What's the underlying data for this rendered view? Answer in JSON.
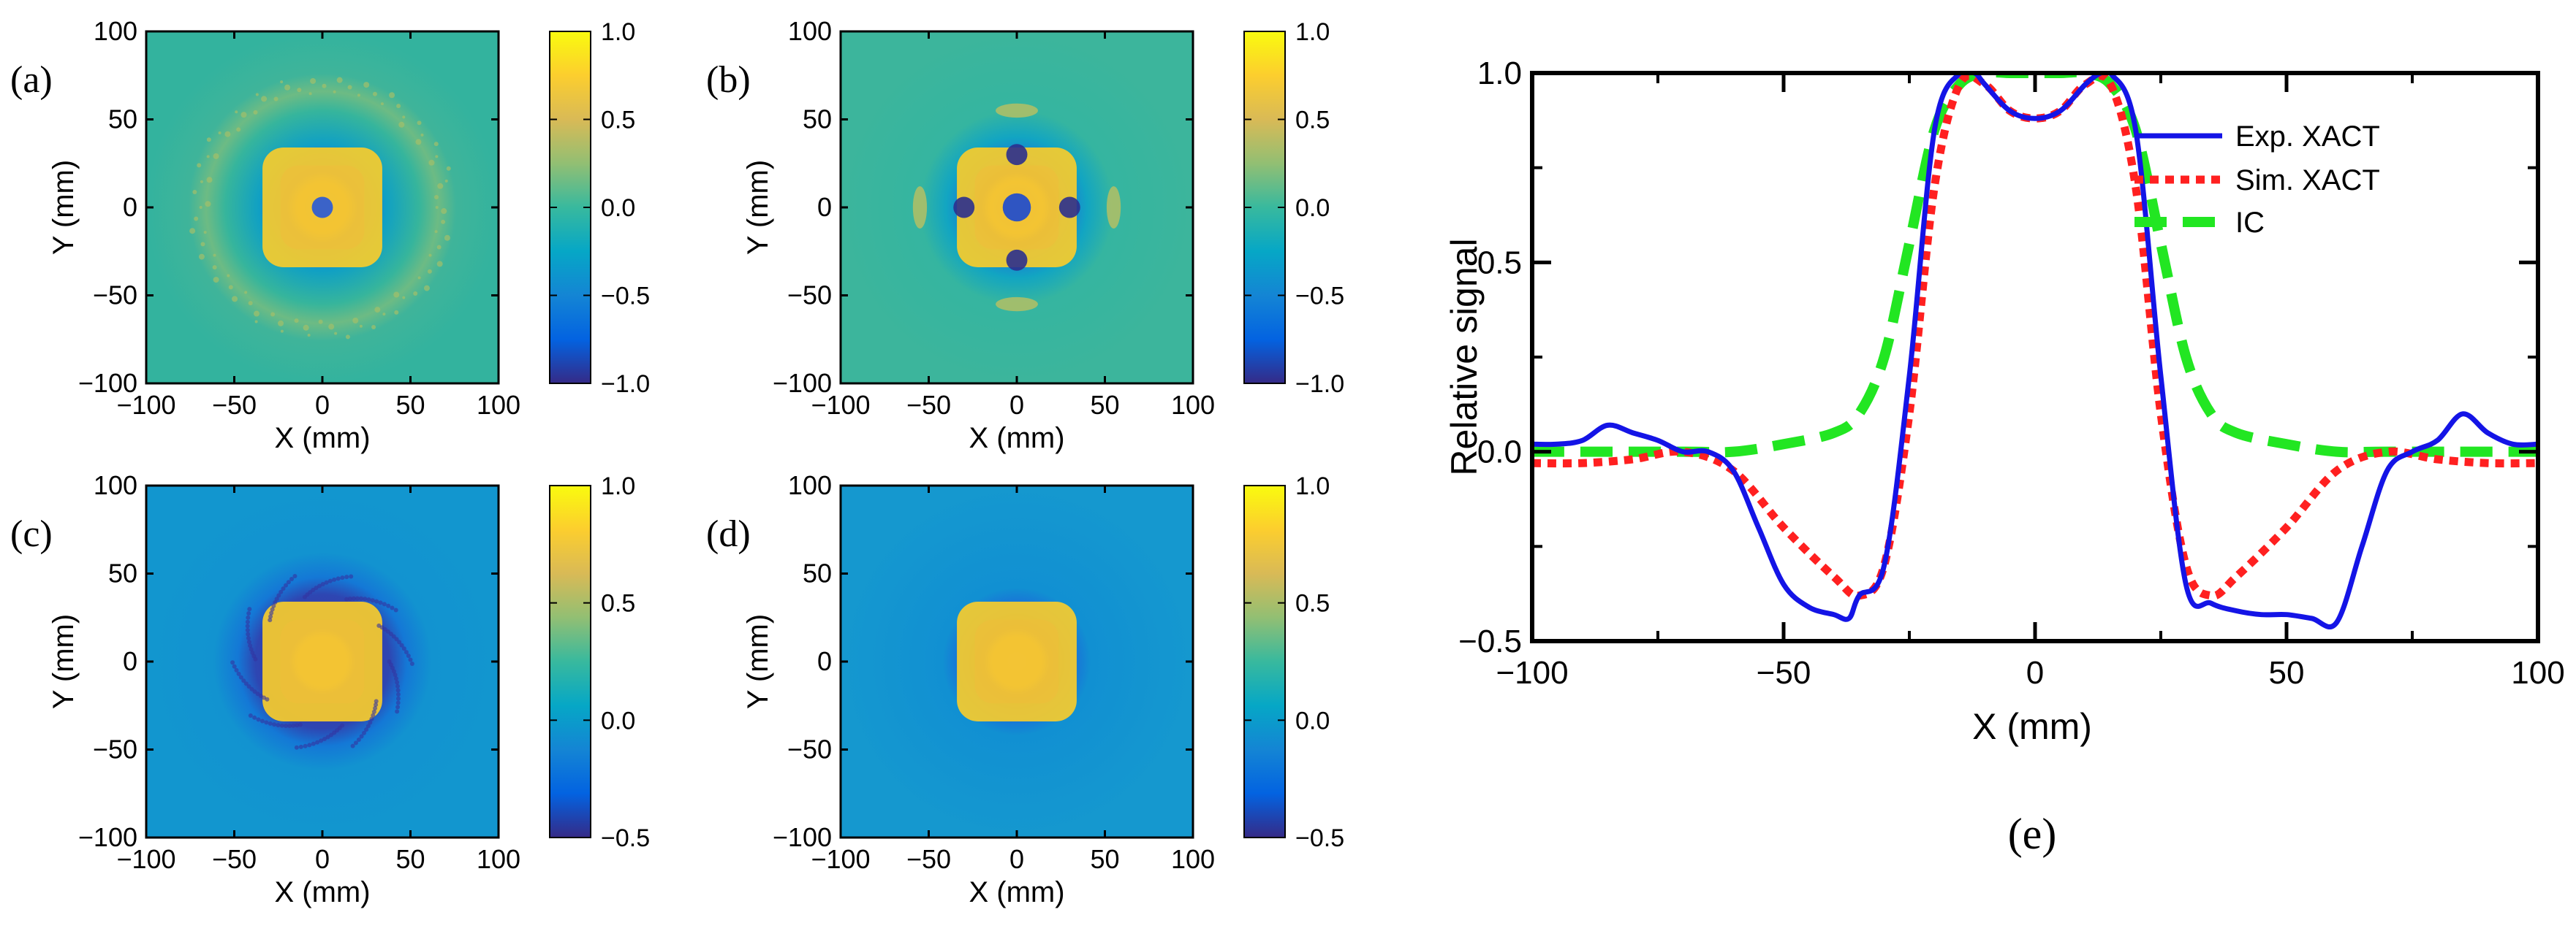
{
  "colors": {
    "parula": [
      "#352a87",
      "#0363e1",
      "#1485d4",
      "#06a7c6",
      "#38b99e",
      "#92bf73",
      "#d9ba56",
      "#fcce2e",
      "#f9fb0e"
    ],
    "exp_line": "#1414e6",
    "sim_line": "#ff2020",
    "ic_line": "#22e622"
  },
  "panels": [
    {
      "letter": "(a)",
      "xlabel": "X (mm)",
      "ylabel": "Y (mm)",
      "xticks": [
        "−100",
        "−50",
        "0",
        "50",
        "100"
      ],
      "yticks": [
        "100",
        "50",
        "0",
        "−50",
        "−100"
      ],
      "colorbar_ticks": [
        "1.0",
        "0.5",
        "0.0",
        "−0.5",
        "−1.0"
      ]
    },
    {
      "letter": "(b)",
      "xlabel": "X (mm)",
      "ylabel": "Y (mm)",
      "xticks": [
        "−100",
        "−50",
        "0",
        "50",
        "100"
      ],
      "yticks": [
        "100",
        "50",
        "0",
        "−50",
        "−100"
      ],
      "colorbar_ticks": [
        "1.0",
        "0.5",
        "0.0",
        "−0.5",
        "−1.0"
      ]
    },
    {
      "letter": "(c)",
      "xlabel": "X (mm)",
      "ylabel": "Y (mm)",
      "xticks": [
        "−100",
        "−50",
        "0",
        "50",
        "100"
      ],
      "yticks": [
        "100",
        "50",
        "0",
        "−50",
        "−100"
      ],
      "colorbar_ticks": [
        "1.0",
        "0.5",
        "0.0",
        "−0.5"
      ]
    },
    {
      "letter": "(d)",
      "xlabel": "X (mm)",
      "ylabel": "Y (mm)",
      "xticks": [
        "−100",
        "−50",
        "0",
        "50",
        "100"
      ],
      "yticks": [
        "100",
        "50",
        "0",
        "−50",
        "−100"
      ],
      "colorbar_ticks": [
        "1.0",
        "0.5",
        "0.0",
        "−0.5"
      ]
    }
  ],
  "chart_data": [
    {
      "type": "heatmap",
      "panel": "(a)",
      "xlabel": "X (mm)",
      "ylabel": "Y (mm)",
      "xlim": [
        -100,
        100
      ],
      "ylim": [
        -100,
        100
      ],
      "colorbar_range": [
        -1.0,
        1.0
      ],
      "features": {
        "center_value": 1.0,
        "inner_ring_value": -0.9,
        "outer_ring_value": 0.3
      }
    },
    {
      "type": "heatmap",
      "panel": "(b)",
      "xlabel": "X (mm)",
      "ylabel": "Y (mm)",
      "xlim": [
        -100,
        100
      ],
      "ylim": [
        -100,
        100
      ],
      "colorbar_range": [
        -1.0,
        1.0
      ],
      "features": {
        "center_value": 1.0,
        "inner_ring_value": -1.0,
        "outer_ring_value": 0.2
      }
    },
    {
      "type": "heatmap",
      "panel": "(c)",
      "xlabel": "X (mm)",
      "ylabel": "Y (mm)",
      "xlim": [
        -100,
        100
      ],
      "ylim": [
        -100,
        100
      ],
      "colorbar_range": [
        -0.5,
        1.0
      ],
      "features": {
        "center_value": 0.95,
        "inner_ring_value": -0.45,
        "background_value": -0.1
      }
    },
    {
      "type": "heatmap",
      "panel": "(d)",
      "xlabel": "X (mm)",
      "ylabel": "Y (mm)",
      "xlim": [
        -100,
        100
      ],
      "ylim": [
        -100,
        100
      ],
      "colorbar_range": [
        -0.5,
        1.0
      ],
      "features": {
        "center_value": 0.95,
        "inner_ring_value": -0.4,
        "background_value": -0.1
      }
    },
    {
      "type": "line",
      "panel": "(e)",
      "xlabel": "X (mm)",
      "ylabel": "Relative signal",
      "xlim": [
        -100,
        100
      ],
      "ylim": [
        -0.5,
        1.0
      ],
      "xticks": [
        "−100",
        "−50",
        "0",
        "50",
        "100"
      ],
      "yticks": [
        "1.0",
        "0.5",
        "0.0",
        "−0.5"
      ],
      "legend": "top-right",
      "series": [
        {
          "name": "Exp. XACT",
          "x": [
            -100,
            -95,
            -90,
            -85,
            -80,
            -75,
            -70,
            -65,
            -60,
            -55,
            -50,
            -45,
            -40,
            -37,
            -35,
            -30,
            -25,
            -20,
            -15,
            -12,
            -10,
            -5,
            0,
            5,
            10,
            13,
            15,
            20,
            25,
            30,
            35,
            40,
            45,
            50,
            55,
            60,
            65,
            70,
            75,
            80,
            85,
            90,
            95,
            100
          ],
          "y": [
            0.02,
            0.02,
            0.03,
            0.07,
            0.05,
            0.03,
            0.0,
            0.0,
            -0.05,
            -0.2,
            -0.35,
            -0.41,
            -0.43,
            -0.44,
            -0.38,
            -0.3,
            0.2,
            0.85,
            1.0,
            1.0,
            0.97,
            0.9,
            0.88,
            0.9,
            0.97,
            1.0,
            1.0,
            0.85,
            0.2,
            -0.35,
            -0.4,
            -0.42,
            -0.43,
            -0.43,
            -0.44,
            -0.45,
            -0.25,
            -0.05,
            0.0,
            0.03,
            0.1,
            0.05,
            0.02,
            0.02
          ]
        },
        {
          "name": "Sim. XACT",
          "x": [
            -100,
            -90,
            -80,
            -70,
            -60,
            -50,
            -40,
            -35,
            -30,
            -25,
            -20,
            -15,
            -10,
            -5,
            0,
            5,
            10,
            15,
            20,
            25,
            30,
            35,
            40,
            50,
            60,
            70,
            80,
            90,
            100
          ],
          "y": [
            -0.03,
            -0.03,
            -0.02,
            0.0,
            -0.05,
            -0.2,
            -0.33,
            -0.38,
            -0.3,
            0.1,
            0.7,
            0.97,
            0.97,
            0.9,
            0.88,
            0.9,
            0.97,
            0.97,
            0.7,
            0.1,
            -0.3,
            -0.38,
            -0.33,
            -0.2,
            -0.05,
            0.0,
            -0.02,
            -0.03,
            -0.03
          ]
        },
        {
          "name": "IC",
          "x": [
            -100,
            -70,
            -60,
            -50,
            -40,
            -35,
            -30,
            -25,
            -20,
            -15,
            -10,
            -5,
            0,
            5,
            10,
            15,
            20,
            25,
            30,
            35,
            40,
            50,
            60,
            70,
            100
          ],
          "y": [
            0.0,
            0.0,
            0.0,
            0.02,
            0.05,
            0.1,
            0.25,
            0.55,
            0.85,
            0.97,
            1.0,
            1.0,
            1.0,
            1.0,
            1.0,
            0.97,
            0.85,
            0.55,
            0.25,
            0.1,
            0.05,
            0.02,
            0.0,
            0.0,
            0.0
          ]
        }
      ]
    }
  ],
  "panel_e": {
    "letter": "(e)",
    "xlabel": "X (mm)",
    "ylabel": "Relative signal",
    "xticks": [
      "−100",
      "−50",
      "0",
      "50",
      "100"
    ],
    "yticks": [
      "1.0",
      "0.5",
      "0.0",
      "−0.5"
    ],
    "legend": [
      "Exp. XACT",
      "Sim. XACT",
      "IC"
    ]
  }
}
